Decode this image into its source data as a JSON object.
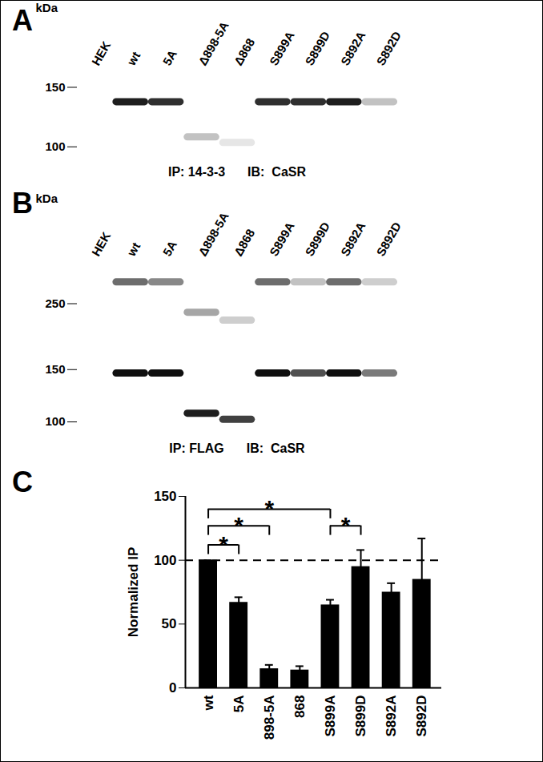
{
  "blots": [
    {
      "panel": "A",
      "lanes": [
        "HEK",
        "wt",
        "5A",
        "Δ898-5A",
        "Δ868",
        "S899A",
        "S899D",
        "S892A",
        "S892D"
      ],
      "ylabel": "kDa",
      "log": "y",
      "ylim": [
        92,
        165
      ],
      "yticks": [
        100,
        150
      ],
      "captions": [
        "IP: 14-3-3",
        "IB:  CaSR"
      ],
      "bands": [
        {
          "lane": "wt",
          "mw": 136,
          "strength": 0.9
        },
        {
          "lane": "5A",
          "mw": 136,
          "strength": 0.85
        },
        {
          "lane": "Δ898-5A",
          "mw": 107,
          "strength": 0.35
        },
        {
          "lane": "Δ868",
          "mw": 103,
          "strength": 0.18
        },
        {
          "lane": "S899A",
          "mw": 136,
          "strength": 0.85
        },
        {
          "lane": "S899D",
          "mw": 136,
          "strength": 0.85
        },
        {
          "lane": "S892A",
          "mw": 136,
          "strength": 0.9
        },
        {
          "lane": "S892D",
          "mw": 136,
          "strength": 0.35
        }
      ]
    },
    {
      "panel": "B",
      "lanes": [
        "HEK",
        "wt",
        "5A",
        "Δ898-5A",
        "Δ868",
        "S899A",
        "S899D",
        "S892A",
        "S892D"
      ],
      "ylabel": "kDa",
      "log": "y",
      "ylim": [
        90,
        340
      ],
      "yticks": [
        100,
        150,
        250
      ],
      "captions": [
        "IP: FLAG",
        "IB:  CaSR"
      ],
      "bands": [
        {
          "lane": "wt",
          "mw": 296,
          "strength": 0.65
        },
        {
          "lane": "5A",
          "mw": 296,
          "strength": 0.55
        },
        {
          "lane": "Δ898-5A",
          "mw": 234,
          "strength": 0.45
        },
        {
          "lane": "Δ868",
          "mw": 220,
          "strength": 0.3
        },
        {
          "lane": "S899A",
          "mw": 296,
          "strength": 0.65
        },
        {
          "lane": "S899D",
          "mw": 296,
          "strength": 0.35
        },
        {
          "lane": "S892A",
          "mw": 296,
          "strength": 0.65
        },
        {
          "lane": "S892D",
          "mw": 296,
          "strength": 0.3
        },
        {
          "lane": "wt",
          "mw": 146,
          "strength": 0.95
        },
        {
          "lane": "5A",
          "mw": 146,
          "strength": 0.95
        },
        {
          "lane": "Δ898-5A",
          "mw": 107,
          "strength": 0.9
        },
        {
          "lane": "Δ868",
          "mw": 102,
          "strength": 0.8
        },
        {
          "lane": "S899A",
          "mw": 146,
          "strength": 0.95
        },
        {
          "lane": "S899D",
          "mw": 146,
          "strength": 0.75
        },
        {
          "lane": "S892A",
          "mw": 146,
          "strength": 0.95
        },
        {
          "lane": "S892D",
          "mw": 146,
          "strength": 0.6
        }
      ]
    }
  ],
  "chart_data": {
    "panel": "C",
    "type": "bar",
    "categories": [
      "wt",
      "5A",
      "898-5A",
      "868",
      "S899A",
      "S899D",
      "S892A",
      "S892D"
    ],
    "values": [
      100,
      67,
      15,
      14,
      65,
      95,
      75,
      85
    ],
    "errors": [
      0,
      4,
      3,
      3,
      4,
      13,
      7,
      32
    ],
    "color": "#000000",
    "ylabel": "Normalized IP",
    "ylim": [
      0,
      150
    ],
    "yticks": [
      0,
      50,
      100,
      150
    ],
    "reference_line": 100,
    "significance": [
      {
        "from": "wt",
        "to": "S899A",
        "y": 140,
        "label": "*"
      },
      {
        "from": "wt",
        "to": "898-5A",
        "y": 127,
        "label": "*"
      },
      {
        "from": "wt",
        "to": "5A",
        "y": 112,
        "label": "*"
      },
      {
        "from": "S899A",
        "to": "S899D",
        "y": 127,
        "label": "*"
      }
    ]
  }
}
